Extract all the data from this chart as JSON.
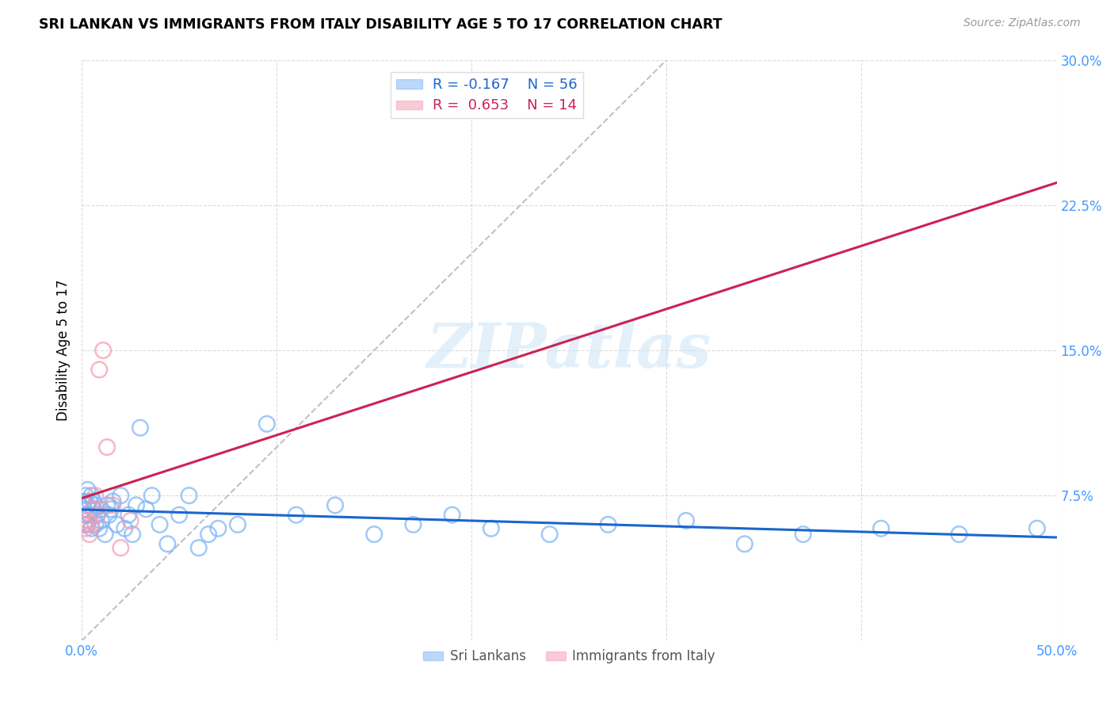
{
  "title": "SRI LANKAN VS IMMIGRANTS FROM ITALY DISABILITY AGE 5 TO 17 CORRELATION CHART",
  "source": "Source: ZipAtlas.com",
  "ylabel": "Disability Age 5 to 17",
  "xlim": [
    0.0,
    0.5
  ],
  "ylim": [
    0.0,
    0.3
  ],
  "sri_lankan_color": "#7ab3f5",
  "italy_color": "#f599b0",
  "sri_lankan_line_color": "#1a66cc",
  "italy_line_color": "#cc2255",
  "legend_sri_R": "-0.167",
  "legend_sri_N": "56",
  "legend_italy_R": "0.653",
  "legend_italy_N": "14",
  "tick_color": "#4499ff",
  "background_color": "#ffffff",
  "grid_color": "#cccccc",
  "sri_lankan_x": [
    0.001,
    0.001,
    0.002,
    0.002,
    0.003,
    0.003,
    0.003,
    0.004,
    0.004,
    0.005,
    0.005,
    0.006,
    0.006,
    0.007,
    0.007,
    0.008,
    0.009,
    0.01,
    0.01,
    0.012,
    0.013,
    0.014,
    0.015,
    0.016,
    0.018,
    0.02,
    0.022,
    0.024,
    0.026,
    0.028,
    0.03,
    0.033,
    0.036,
    0.04,
    0.044,
    0.05,
    0.055,
    0.06,
    0.065,
    0.07,
    0.08,
    0.095,
    0.11,
    0.13,
    0.15,
    0.17,
    0.19,
    0.21,
    0.24,
    0.27,
    0.31,
    0.34,
    0.37,
    0.41,
    0.45,
    0.49
  ],
  "sri_lankan_y": [
    0.068,
    0.072,
    0.075,
    0.065,
    0.07,
    0.078,
    0.06,
    0.072,
    0.065,
    0.075,
    0.058,
    0.068,
    0.072,
    0.06,
    0.07,
    0.065,
    0.058,
    0.062,
    0.068,
    0.055,
    0.07,
    0.065,
    0.068,
    0.072,
    0.06,
    0.075,
    0.058,
    0.065,
    0.055,
    0.07,
    0.11,
    0.068,
    0.075,
    0.06,
    0.05,
    0.065,
    0.075,
    0.048,
    0.055,
    0.058,
    0.06,
    0.112,
    0.065,
    0.07,
    0.055,
    0.06,
    0.065,
    0.058,
    0.055,
    0.06,
    0.062,
    0.05,
    0.055,
    0.058,
    0.055,
    0.058
  ],
  "italy_x": [
    0.001,
    0.002,
    0.003,
    0.004,
    0.005,
    0.006,
    0.007,
    0.008,
    0.009,
    0.011,
    0.013,
    0.016,
    0.02,
    0.025
  ],
  "italy_y": [
    0.06,
    0.058,
    0.062,
    0.055,
    0.06,
    0.068,
    0.075,
    0.065,
    0.14,
    0.15,
    0.1,
    0.07,
    0.048,
    0.062
  ],
  "diag_line_x": [
    0.0,
    0.3
  ],
  "diag_line_y": [
    0.0,
    0.3
  ]
}
